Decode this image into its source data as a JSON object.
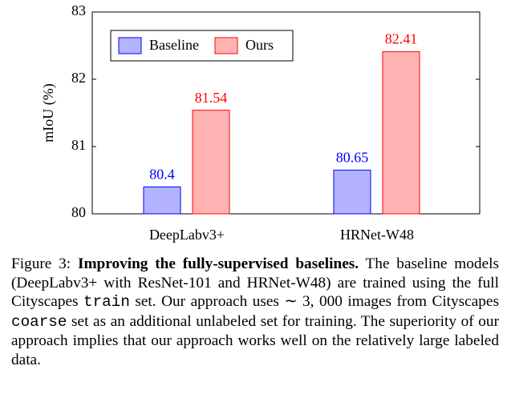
{
  "chart_data": {
    "type": "bar",
    "ylabel": "mIoU (%)",
    "categories": [
      "DeepLabv3+",
      "HRNet-W48"
    ],
    "series": [
      {
        "name": "Baseline",
        "color": "#b3b3ff",
        "edge": "#0000ff",
        "values": [
          80.4,
          80.65
        ]
      },
      {
        "name": "Ours",
        "color": "#ffb3b3",
        "edge": "#ff0000",
        "values": [
          81.54,
          82.41
        ]
      }
    ],
    "ylim": [
      80,
      83
    ],
    "yticks": [
      80,
      81,
      82,
      83
    ],
    "grid": false,
    "legend": "upper left"
  },
  "caption": [
    {
      "text": "Figure 3: ",
      "style": "normal"
    },
    {
      "text": "Improving the fully-supervised baselines.",
      "style": "bold"
    },
    {
      "text": " The baseline models (DeepLabv3+ with ResNet-101 and HRNet-W48) are trained using the full Cityscapes ",
      "style": "normal"
    },
    {
      "text": "train",
      "style": "mono"
    },
    {
      "text": " set. Our approach uses ∼ 3, 000 images from Cityscapes ",
      "style": "normal"
    },
    {
      "text": "coarse",
      "style": "mono"
    },
    {
      "text": " set as an additional unlabeled set for training. The superiority of our approach implies that our approach works well on the relatively large labeled data.",
      "style": "normal"
    }
  ]
}
